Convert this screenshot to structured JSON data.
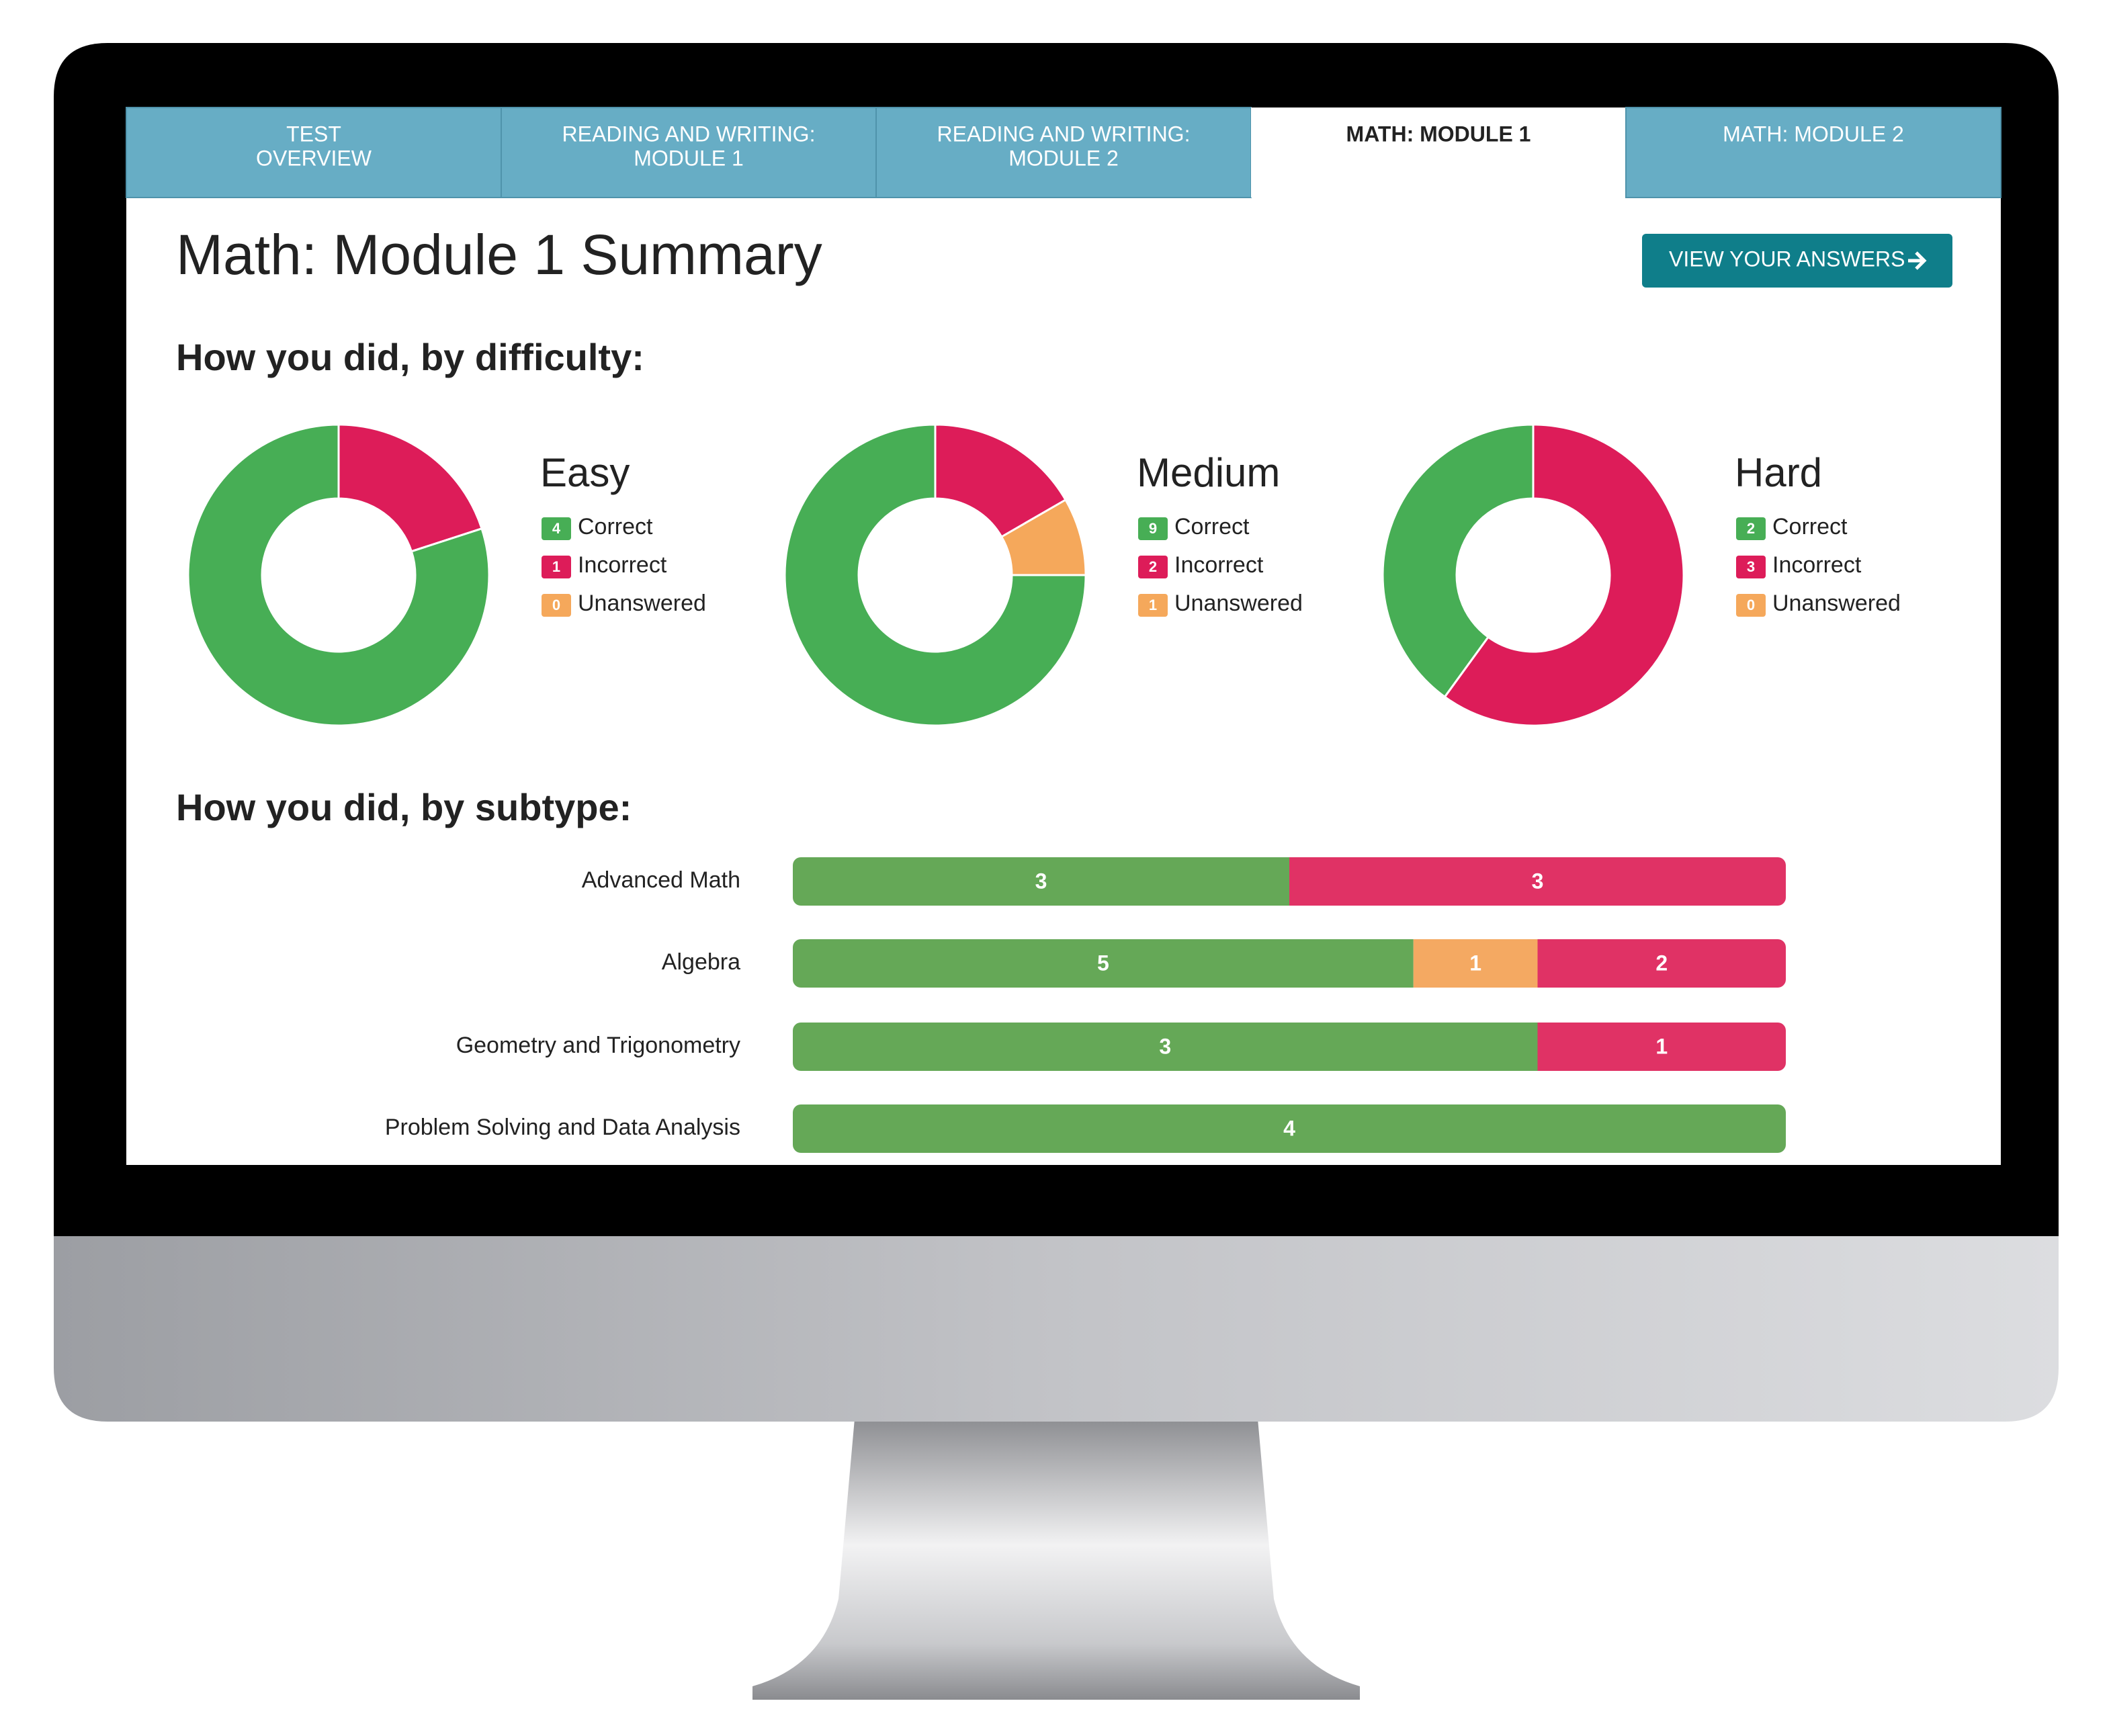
{
  "tabs": [
    {
      "lines": [
        "TEST",
        "OVERVIEW"
      ],
      "active": false
    },
    {
      "lines": [
        "READING AND WRITING:",
        "MODULE 1"
      ],
      "active": false
    },
    {
      "lines": [
        "READING AND WRITING:",
        "MODULE 2"
      ],
      "active": false
    },
    {
      "lines": [
        "MATH: MODULE 1"
      ],
      "active": true
    },
    {
      "lines": [
        "MATH: MODULE 2"
      ],
      "active": false
    }
  ],
  "header": {
    "title": "Math: Module 1 Summary",
    "button": "VIEW YOUR ANSWERS"
  },
  "difficulty": {
    "heading": "How you did, by difficulty:",
    "charts": [
      {
        "type": "donut",
        "title": "Easy",
        "series": [
          {
            "name": "Correct",
            "color": "#47ae55",
            "value": 4
          },
          {
            "name": "Incorrect",
            "color": "#dd1c59",
            "value": 1
          },
          {
            "name": "Unanswered",
            "color": "#f5a85b",
            "value": 0
          }
        ]
      },
      {
        "type": "donut",
        "title": "Medium",
        "series": [
          {
            "name": "Correct",
            "color": "#47ae55",
            "value": 9
          },
          {
            "name": "Incorrect",
            "color": "#dd1c59",
            "value": 2
          },
          {
            "name": "Unanswered",
            "color": "#f5a85b",
            "value": 1
          }
        ]
      },
      {
        "type": "donut",
        "title": "Hard",
        "series": [
          {
            "name": "Correct",
            "color": "#47ae55",
            "value": 2
          },
          {
            "name": "Incorrect",
            "color": "#dd1c59",
            "value": 3
          },
          {
            "name": "Unanswered",
            "color": "#f5a85b",
            "value": 0
          }
        ]
      }
    ]
  },
  "subtype": {
    "heading": "How you did, by subtype:",
    "chart": {
      "type": "bar",
      "categories": [
        "Advanced Math",
        "Algebra",
        "Geometry and Trigonometry",
        "Problem Solving and Data Analysis"
      ],
      "series": [
        {
          "color": "#65a857",
          "values": [
            3,
            5,
            3,
            4
          ]
        },
        {
          "color": "#f4a962",
          "values": [
            0,
            1,
            0,
            0
          ]
        },
        {
          "color": "#e03265",
          "values": [
            3,
            2,
            1,
            0
          ]
        }
      ]
    }
  }
}
